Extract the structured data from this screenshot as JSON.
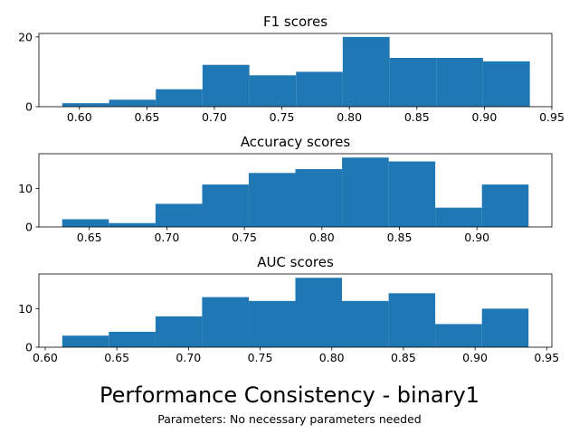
{
  "figure": {
    "suptitle": "Performance Consistency - binary1",
    "subtitle": "Parameters: No necessary parameters needed"
  },
  "chart_data": [
    {
      "type": "bar",
      "title": "F1 scores",
      "xlabel": "",
      "ylabel": "",
      "bin_edges": [
        0.5873,
        0.622,
        0.6566,
        0.6912,
        0.7259,
        0.7605,
        0.7951,
        0.8298,
        0.8644,
        0.899,
        0.9337
      ],
      "values": [
        1,
        2,
        5,
        12,
        9,
        10,
        20,
        14,
        14,
        13
      ],
      "xlim": [
        0.57,
        0.95
      ],
      "ylim": [
        0,
        21
      ],
      "xticks": [
        0.6,
        0.65,
        0.7,
        0.75,
        0.8,
        0.85,
        0.9,
        0.95
      ],
      "xtick_labels": [
        "0.60",
        "0.65",
        "0.70",
        "0.75",
        "0.80",
        "0.85",
        "0.90",
        "0.95"
      ],
      "yticks": [
        0,
        20
      ],
      "ytick_labels": [
        "0",
        "20"
      ],
      "color": "#1f77b4"
    },
    {
      "type": "bar",
      "title": "Accuracy scores",
      "xlabel": "",
      "ylabel": "",
      "bin_edges": [
        0.6325,
        0.6626,
        0.6927,
        0.7228,
        0.7528,
        0.7829,
        0.813,
        0.8431,
        0.8731,
        0.9032,
        0.9333
      ],
      "values": [
        2,
        1,
        6,
        11,
        14,
        15,
        18,
        17,
        5,
        11
      ],
      "xlim": [
        0.6175,
        0.9483
      ],
      "ylim": [
        0,
        19
      ],
      "xticks": [
        0.65,
        0.7,
        0.75,
        0.8,
        0.85,
        0.9
      ],
      "xtick_labels": [
        "0.65",
        "0.70",
        "0.75",
        "0.80",
        "0.85",
        "0.90"
      ],
      "yticks": [
        0,
        10
      ],
      "ytick_labels": [
        "0",
        "10"
      ],
      "color": "#1f77b4"
    },
    {
      "type": "bar",
      "title": "AUC scores",
      "xlabel": "",
      "ylabel": "",
      "bin_edges": [
        0.6119,
        0.6444,
        0.677,
        0.7095,
        0.7421,
        0.7746,
        0.8071,
        0.8397,
        0.8722,
        0.9048,
        0.9373
      ],
      "values": [
        3,
        4,
        8,
        13,
        12,
        18,
        12,
        14,
        6,
        10
      ],
      "xlim": [
        0.5956,
        0.9536
      ],
      "ylim": [
        0,
        19
      ],
      "xticks": [
        0.6,
        0.65,
        0.7,
        0.75,
        0.8,
        0.85,
        0.9,
        0.95
      ],
      "xtick_labels": [
        "0.60",
        "0.65",
        "0.70",
        "0.75",
        "0.80",
        "0.85",
        "0.90",
        "0.95"
      ],
      "yticks": [
        0,
        10
      ],
      "ytick_labels": [
        "0",
        "10"
      ],
      "color": "#1f77b4"
    }
  ]
}
